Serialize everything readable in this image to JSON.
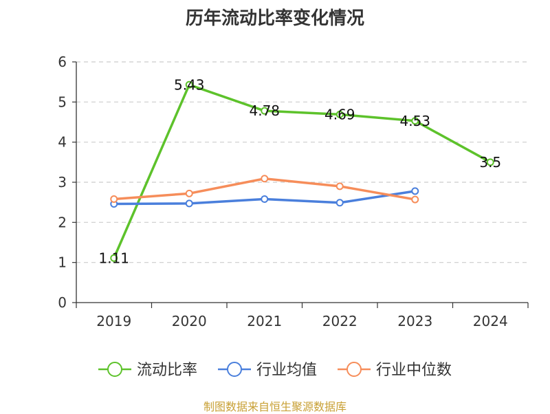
{
  "chart_data": {
    "type": "line",
    "title": "历年流动比率变化情况",
    "categories": [
      "2019",
      "2020",
      "2021",
      "2022",
      "2023",
      "2024"
    ],
    "ylim": [
      0,
      6
    ],
    "yticks": [
      0,
      1,
      2,
      3,
      4,
      5,
      6
    ],
    "grid": true,
    "legend_position": "bottom",
    "series": [
      {
        "name": "流动比率",
        "color": "#5dc22b",
        "values": [
          1.11,
          5.43,
          4.78,
          4.69,
          4.53,
          3.5
        ],
        "labels": [
          "1.11",
          "5.43",
          "4.78",
          "4.69",
          "4.53",
          "3.5"
        ]
      },
      {
        "name": "行业均值",
        "color": "#4a7fdc",
        "values": [
          2.46,
          2.47,
          2.58,
          2.49,
          2.78,
          null
        ]
      },
      {
        "name": "行业中位数",
        "color": "#f68d5a",
        "values": [
          2.58,
          2.72,
          3.09,
          2.9,
          2.57,
          null
        ]
      }
    ]
  },
  "footer": {
    "source": "制图数据来自恒生聚源数据库"
  }
}
